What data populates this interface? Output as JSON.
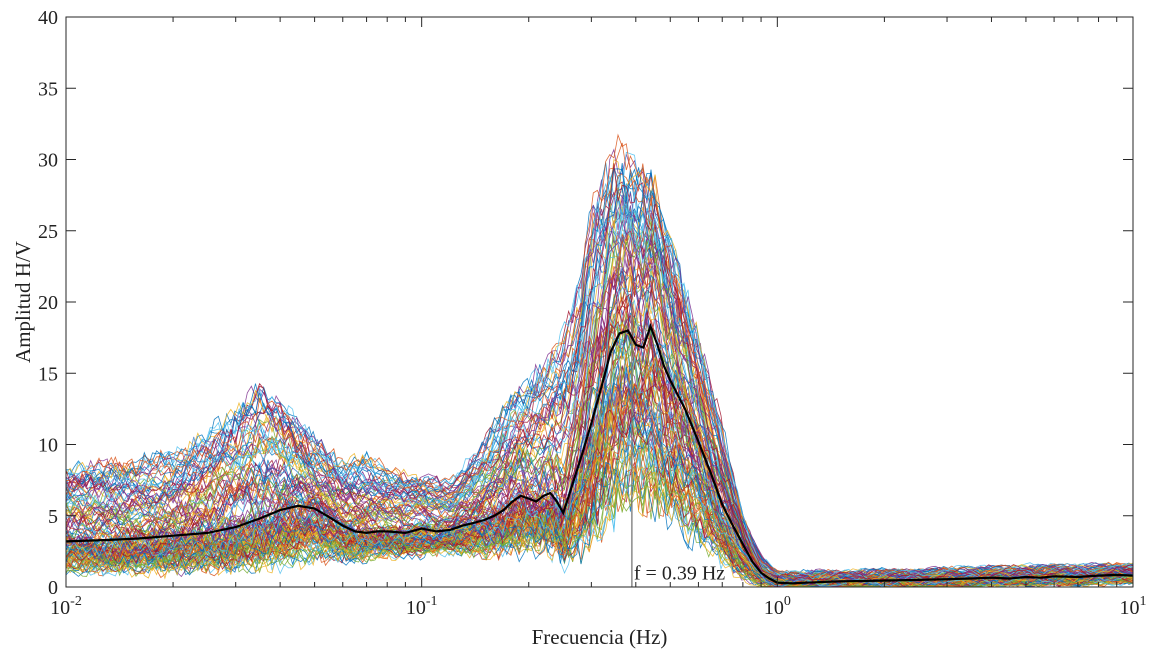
{
  "chart_data": {
    "type": "line",
    "title": "",
    "xlabel": "Frecuencia (Hz)",
    "ylabel": "Amplitud H/V",
    "xscale": "log",
    "xlim": [
      0.01,
      10
    ],
    "ylim": [
      0,
      40
    ],
    "grid": false,
    "legend": "none",
    "x_ticks": [
      {
        "value": 0.01,
        "base": "10",
        "exp": "-2"
      },
      {
        "value": 0.1,
        "base": "10",
        "exp": "-1"
      },
      {
        "value": 1,
        "base": "10",
        "exp": "0"
      },
      {
        "value": 10,
        "base": "10",
        "exp": "1"
      }
    ],
    "y_ticks": [
      0,
      5,
      10,
      15,
      20,
      25,
      30,
      35,
      40
    ],
    "mean_curve": {
      "color": "#000000",
      "x": [
        0.01,
        0.013,
        0.016,
        0.02,
        0.025,
        0.03,
        0.035,
        0.04,
        0.045,
        0.05,
        0.055,
        0.06,
        0.065,
        0.07,
        0.075,
        0.08,
        0.09,
        0.1,
        0.11,
        0.12,
        0.13,
        0.14,
        0.15,
        0.16,
        0.17,
        0.18,
        0.19,
        0.2,
        0.21,
        0.22,
        0.23,
        0.24,
        0.25,
        0.26,
        0.27,
        0.28,
        0.3,
        0.32,
        0.34,
        0.36,
        0.38,
        0.39,
        0.4,
        0.42,
        0.44,
        0.46,
        0.48,
        0.5,
        0.55,
        0.6,
        0.65,
        0.7,
        0.75,
        0.8,
        0.85,
        0.9,
        0.95,
        1.0,
        1.1,
        1.2,
        1.5,
        2,
        2.5,
        3,
        3.5,
        4,
        4.5,
        5,
        5.5,
        6,
        7,
        8,
        9,
        10
      ],
      "y": [
        3.2,
        3.3,
        3.4,
        3.6,
        3.8,
        4.2,
        4.8,
        5.4,
        5.7,
        5.5,
        4.9,
        4.3,
        3.9,
        3.8,
        3.9,
        3.9,
        3.8,
        4.1,
        3.9,
        4.0,
        4.3,
        4.5,
        4.7,
        5.0,
        5.4,
        6.0,
        6.4,
        6.2,
        6.0,
        6.4,
        6.6,
        6.0,
        5.2,
        6.5,
        7.8,
        9.0,
        11.5,
        14.0,
        16.5,
        17.8,
        18.0,
        17.5,
        17.0,
        16.8,
        18.3,
        17.0,
        15.5,
        14.5,
        12.5,
        10.2,
        8.0,
        5.8,
        4.3,
        3.0,
        1.8,
        1.0,
        0.6,
        0.3,
        0.25,
        0.3,
        0.4,
        0.45,
        0.5,
        0.55,
        0.6,
        0.65,
        0.6,
        0.7,
        0.65,
        0.75,
        0.7,
        0.8,
        0.85,
        0.8
      ]
    },
    "envelope": {
      "description": "individual window curves",
      "x": [
        0.01,
        0.02,
        0.03,
        0.035,
        0.04,
        0.05,
        0.06,
        0.07,
        0.08,
        0.1,
        0.12,
        0.15,
        0.18,
        0.2,
        0.22,
        0.25,
        0.28,
        0.3,
        0.35,
        0.4,
        0.45,
        0.5,
        0.6,
        0.7,
        0.8,
        0.9,
        1.0,
        1.5,
        2,
        3,
        5,
        7,
        10
      ],
      "lower": [
        1.3,
        1.4,
        1.6,
        1.8,
        2.0,
        2.2,
        2.0,
        2.2,
        2.4,
        2.5,
        2.7,
        2.6,
        2.7,
        2.8,
        2.9,
        2.3,
        3.0,
        4.0,
        6.0,
        7.0,
        6.0,
        5.0,
        3.5,
        2.0,
        0.8,
        0.3,
        0.15,
        0.15,
        0.2,
        0.3,
        0.35,
        0.4,
        0.45
      ],
      "upper": [
        8.0,
        9.0,
        12.0,
        13.5,
        12.5,
        10.0,
        8.5,
        9.0,
        8.0,
        7.5,
        7.0,
        10.0,
        13.0,
        14.0,
        15.0,
        17.0,
        21.0,
        26.0,
        30.0,
        29.0,
        28.0,
        24.0,
        17.0,
        11.0,
        5.0,
        2.0,
        0.8,
        0.9,
        1.0,
        1.1,
        1.3,
        1.3,
        1.4
      ]
    },
    "series_colors": [
      "#0072BD",
      "#D95319",
      "#EDB120",
      "#7E2F8E",
      "#77AC30",
      "#4DBEEE",
      "#A2142F"
    ],
    "vertical_marker": {
      "x": 0.39,
      "color": "#777777"
    },
    "annotation": {
      "text": "f = 0.39 Hz",
      "x": 0.39,
      "y": 0.4
    }
  }
}
